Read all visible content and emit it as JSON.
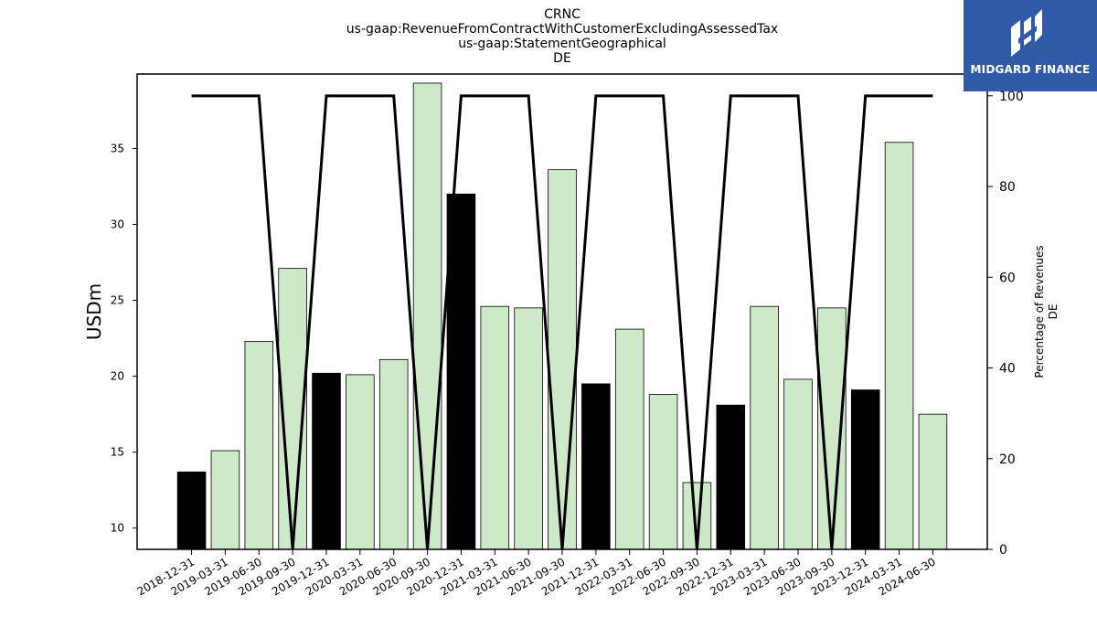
{
  "chart_data": {
    "type": "bar",
    "title_lines": [
      "CRNC",
      "us-gaap:RevenueFromContractWithCustomerExcludingAssessedTax",
      "us-gaap:StatementGeographical",
      "DE"
    ],
    "ylabel": "USDm",
    "ylabel_right": [
      "Percentage of Revenues",
      "DE"
    ],
    "ylim": [
      8.6,
      39.9
    ],
    "ylim_right": [
      0,
      104.8
    ],
    "yticks": [
      10,
      15,
      20,
      25,
      30,
      35
    ],
    "yticks_right": [
      0,
      20,
      40,
      60,
      80,
      100
    ],
    "categories": [
      "2018-12-31",
      "2019-03-31",
      "2019-06-30",
      "2019-09-30",
      "2019-12-31",
      "2020-03-31",
      "2020-06-30",
      "2020-09-30",
      "2020-12-31",
      "2021-03-31",
      "2021-06-30",
      "2021-09-30",
      "2021-12-31",
      "2022-03-31",
      "2022-06-30",
      "2022-09-30",
      "2022-12-31",
      "2023-03-31",
      "2023-06-30",
      "2023-09-30",
      "2023-12-31",
      "2024-03-31",
      "2024-06-30"
    ],
    "values": [
      13.7,
      15.1,
      22.3,
      27.1,
      20.2,
      20.1,
      21.1,
      39.3,
      32.0,
      24.6,
      24.5,
      33.6,
      19.5,
      23.1,
      18.8,
      13.0,
      18.1,
      24.6,
      19.8,
      24.5,
      19.1,
      35.4,
      17.5
    ],
    "bar_colors": [
      "#000000",
      "#cde9c8",
      "#cde9c8",
      "#cde9c8",
      "#000000",
      "#cde9c8",
      "#cde9c8",
      "#cde9c8",
      "#000000",
      "#cde9c8",
      "#cde9c8",
      "#cde9c8",
      "#000000",
      "#cde9c8",
      "#cde9c8",
      "#cde9c8",
      "#000000",
      "#cde9c8",
      "#cde9c8",
      "#cde9c8",
      "#000000",
      "#cde9c8",
      "#cde9c8"
    ],
    "line_values": [
      100,
      100,
      100,
      0,
      100,
      100,
      100,
      0,
      100,
      100,
      100,
      0,
      100,
      100,
      100,
      0,
      100,
      100,
      100,
      0,
      100,
      100,
      100
    ],
    "line_color": "#000000",
    "grid": false
  },
  "logo": {
    "text": "MIDGARD FINANCE",
    "background": "#2f5aa8"
  }
}
